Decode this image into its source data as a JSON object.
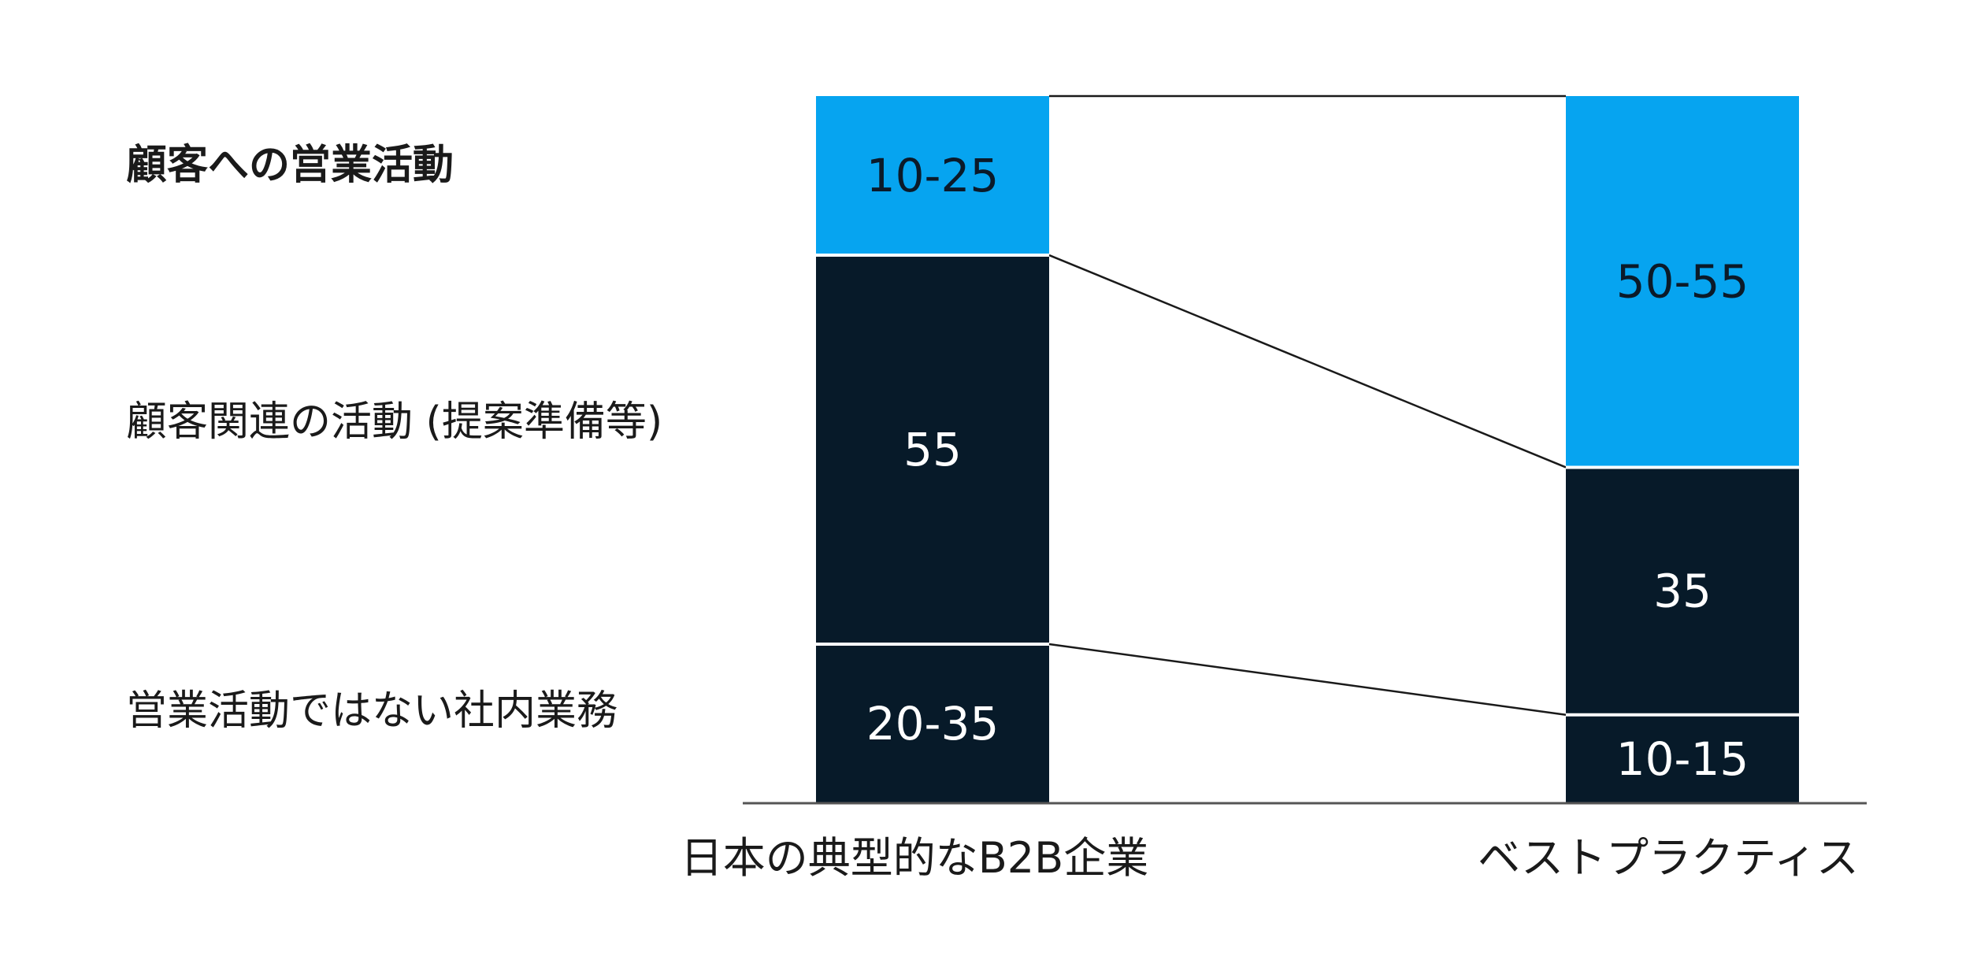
{
  "chart_data": {
    "type": "bar",
    "stacked": true,
    "categories": [
      "日本の典型的なB2B企業",
      "ベストプラクティス"
    ],
    "row_labels": [
      {
        "text": "顧客への営業活動",
        "bold": true
      },
      {
        "text": "顧客関連の活動 (提案準備等)",
        "bold": false
      },
      {
        "text": "営業活動ではない社内業務",
        "bold": false
      }
    ],
    "series": [
      {
        "values": [
          22.5,
          52.5
        ],
        "labels": [
          "10-25",
          "50-55"
        ],
        "color": "#06a4f0",
        "label_color": "#0b1a29"
      },
      {
        "values": [
          55,
          35
        ],
        "labels": [
          "55",
          "35"
        ],
        "color": "#071a29",
        "label_color": "#ffffff"
      },
      {
        "values": [
          22.5,
          12.5
        ],
        "labels": [
          "20-35",
          "10-15"
        ],
        "color": "#071a29",
        "label_color": "#ffffff"
      }
    ],
    "ylim": [
      0,
      100
    ],
    "connector_lines": true,
    "grid": false,
    "legend": "none"
  }
}
